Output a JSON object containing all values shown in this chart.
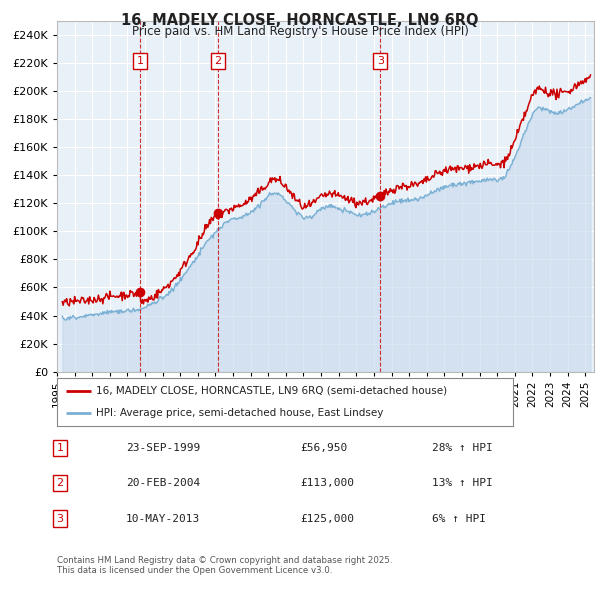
{
  "title1": "16, MADELY CLOSE, HORNCASTLE, LN9 6RQ",
  "title2": "Price paid vs. HM Land Registry's House Price Index (HPI)",
  "fig_bg_color": "#ffffff",
  "plot_bg_color": "#e8f0f8",
  "grid_color": "#ffffff",
  "red_color": "#cc0000",
  "blue_color": "#7ab0d4",
  "blue_fill_color": "#c5d8ec",
  "ylim": [
    0,
    250000
  ],
  "yticks": [
    0,
    20000,
    40000,
    60000,
    80000,
    100000,
    120000,
    140000,
    160000,
    180000,
    200000,
    220000,
    240000
  ],
  "legend_label_red": "16, MADELY CLOSE, HORNCASTLE, LN9 6RQ (semi-detached house)",
  "legend_label_blue": "HPI: Average price, semi-detached house, East Lindsey",
  "sale1_label": "1",
  "sale1_date": "23-SEP-1999",
  "sale1_price": "£56,950",
  "sale1_hpi": "28% ↑ HPI",
  "sale2_label": "2",
  "sale2_date": "20-FEB-2004",
  "sale2_price": "£113,000",
  "sale2_hpi": "13% ↑ HPI",
  "sale3_label": "3",
  "sale3_date": "10-MAY-2013",
  "sale3_price": "£125,000",
  "sale3_hpi": "6% ↑ HPI",
  "footer": "Contains HM Land Registry data © Crown copyright and database right 2025.\nThis data is licensed under the Open Government Licence v3.0.",
  "sale1_x": 1999.73,
  "sale1_y": 56950,
  "sale2_x": 2004.13,
  "sale2_y": 113000,
  "sale3_x": 2013.36,
  "sale3_y": 125000,
  "xmin": 1995.0,
  "xmax": 2025.5,
  "xticks": [
    1995,
    1996,
    1997,
    1998,
    1999,
    2000,
    2001,
    2002,
    2003,
    2004,
    2005,
    2006,
    2007,
    2008,
    2009,
    2010,
    2011,
    2012,
    2013,
    2014,
    2015,
    2016,
    2017,
    2018,
    2019,
    2020,
    2021,
    2022,
    2023,
    2024,
    2025
  ]
}
